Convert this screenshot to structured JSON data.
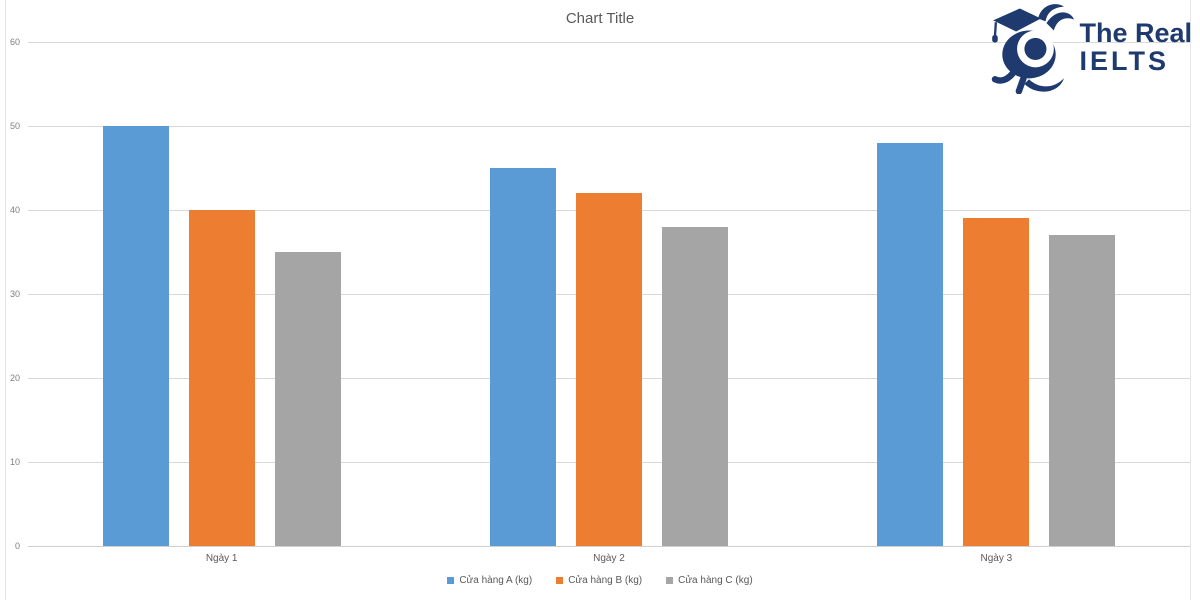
{
  "title": "Chart Title",
  "logo": {
    "line1": "The Real",
    "line2": "IELTS",
    "color": "#1e3a6e",
    "mascot_icon": "running-graduate-bird-mascot"
  },
  "chart_data": {
    "type": "bar",
    "title": "Chart Title",
    "categories": [
      "Ngày 1",
      "Ngày 2",
      "Ngày 3"
    ],
    "series": [
      {
        "name": "Cửa hàng A (kg)",
        "color": "#5b9bd5",
        "values": [
          50,
          45,
          48
        ]
      },
      {
        "name": "Cửa hàng B (kg)",
        "color": "#ed7d31",
        "values": [
          40,
          42,
          39
        ]
      },
      {
        "name": "Cửa hàng C (kg)",
        "color": "#a5a5a5",
        "values": [
          35,
          38,
          37
        ]
      }
    ],
    "xlabel": "",
    "ylabel": "",
    "ylim": [
      0,
      60
    ],
    "ytick_step": 10,
    "ytick_labels": [
      "0",
      "10",
      "20",
      "30",
      "40",
      "50",
      "60"
    ],
    "grid": "horizontal",
    "gridline_color": "#d9d9d9",
    "legend_position": "bottom",
    "title_color": "#595959",
    "axis_text_color": "#7f7f7f"
  }
}
